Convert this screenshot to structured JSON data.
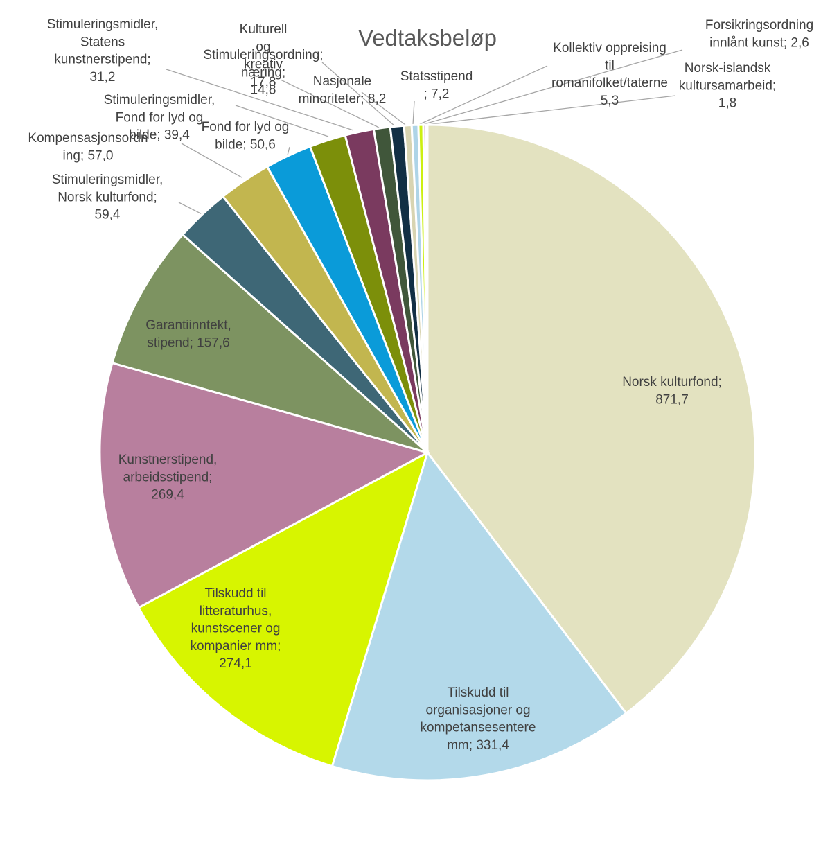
{
  "chart_data": {
    "type": "pie",
    "title": "Vedtaksbeløp",
    "legend": "none",
    "slices": [
      {
        "name": "Norsk kulturfond",
        "value": 871.7,
        "label": [
          "Norsk kulturfond;",
          "871,7"
        ],
        "color": "#e3e2c0"
      },
      {
        "name": "Tilskudd til organisasjoner og kompetansesentere mm",
        "value": 331.4,
        "label": [
          "Tilskudd til",
          "organisasjoner og",
          "kompetansesentere",
          "mm;  331,4"
        ],
        "color": "#b3d9ea"
      },
      {
        "name": "Tilskudd til litteraturhus, kunstscener og kompanier mm",
        "value": 274.1,
        "label": [
          "Tilskudd til",
          "litteraturhus,",
          "kunstscener og",
          "kompanier mm;",
          "274,1"
        ],
        "color": "#d7f500"
      },
      {
        "name": "Kunstnerstipend, arbeidsstipend",
        "value": 269.4,
        "label": [
          "Kunstnerstipend,",
          "arbeidsstipend;",
          "269,4"
        ],
        "color": "#b87f9e"
      },
      {
        "name": "Garantiinntekt, stipend",
        "value": 157.6,
        "label": [
          "Garantiinntekt,",
          "stipend;  157,6"
        ],
        "color": "#7d9361"
      },
      {
        "name": "Stimuleringsmidler, Norsk kulturfond",
        "value": 59.4,
        "label": [
          "Stimuleringsmidler,",
          "Norsk kulturfond;",
          "59,4"
        ],
        "color": "#3e6776"
      },
      {
        "name": "Kompensasjonsordning",
        "value": 57.0,
        "label": [
          "Kompensasjonsordn",
          "ing;  57,0"
        ],
        "color": "#c2b64f"
      },
      {
        "name": "Fond for lyd og bilde",
        "value": 50.6,
        "label": [
          "Fond for lyd og",
          "bilde;  50,6"
        ],
        "color": "#0a9bd9"
      },
      {
        "name": "Stimuleringsmidler, Fond for lyd og bilde",
        "value": 39.4,
        "label": [
          "Stimuleringsmidler,",
          "Fond for lyd og",
          "bilde;  39,4"
        ],
        "color": "#7c8f0a"
      },
      {
        "name": "Stimuleringsmidler, Statens kunstnerstipend",
        "value": 31.2,
        "label": [
          "Stimuleringsmidler,",
          "Statens",
          "kunstnerstipend;",
          "31,2"
        ],
        "color": "#7a3a5f"
      },
      {
        "name": "Kulturell og kreativ næring",
        "value": 17.8,
        "label": [
          "Kulturell",
          "og",
          "kreativ",
          "17,8"
        ],
        "color": "#40563a"
      },
      {
        "name": "Stimuleringsordning; næring",
        "value": 14.8,
        "label": [
          "Stimuleringsordning;",
          "næring;",
          "14,8"
        ],
        "color": "#122f44"
      },
      {
        "name": "Nasjonale minoriteter",
        "value": 8.2,
        "label": [
          "Nasjonale",
          "minoriteter;  8,2"
        ],
        "color": "#d8d4b1"
      },
      {
        "name": "Statsstipend",
        "value": 7.2,
        "label": [
          "Statsstipend",
          ";  7,2"
        ],
        "color": "#aed4e7"
      },
      {
        "name": "Kollektiv oppreising til romanifolket/taterne",
        "value": 5.3,
        "label": [
          "Kollektiv oppreising",
          "til",
          "romanifolket/taterne",
          "5,3"
        ],
        "color": "#ccef12"
      },
      {
        "name": "Forsikringsordning innlånt kunst",
        "value": 2.6,
        "label": [
          "Forsikringsordning",
          "innlånt kunst;  2,6"
        ],
        "color": "#c58faa"
      },
      {
        "name": "Norsk-islandsk kultursamarbeid",
        "value": 1.8,
        "label": [
          "Norsk-islandsk",
          "kultursamarbeid;",
          "1,8"
        ],
        "color": "#889c6a"
      }
    ]
  }
}
